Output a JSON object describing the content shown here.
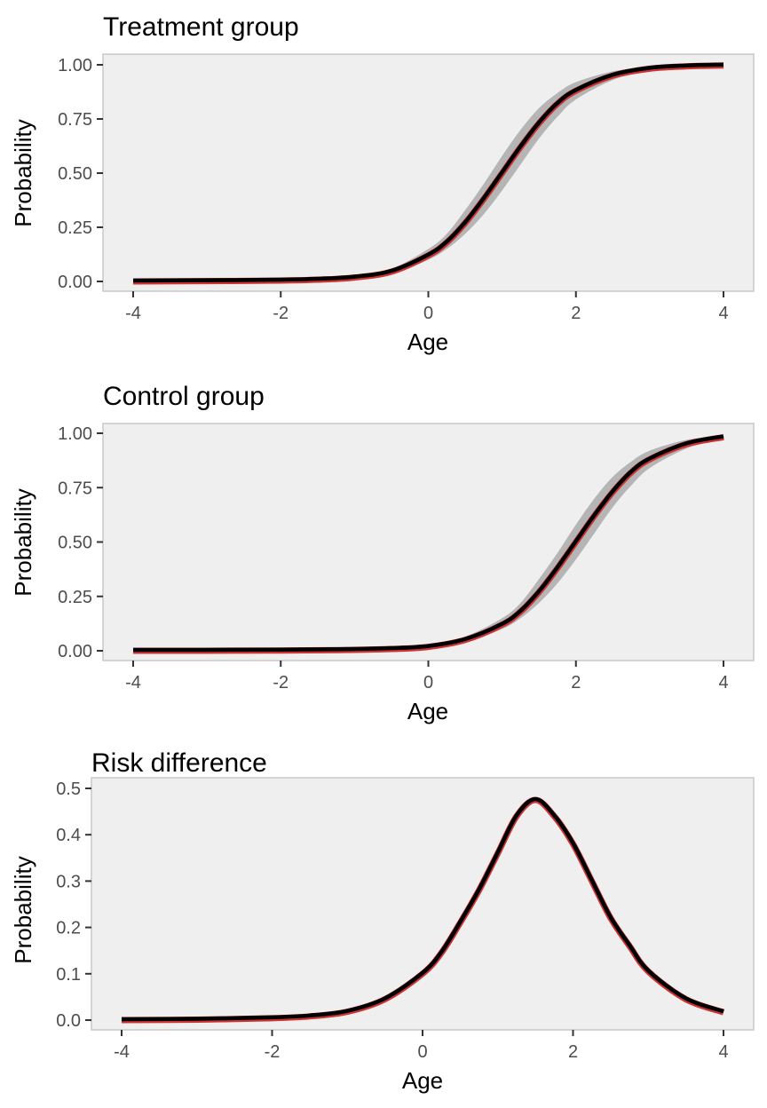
{
  "chart_data": [
    {
      "type": "line",
      "title": "Treatment group",
      "xlabel": "Age",
      "ylabel": "Probability",
      "xlim": [
        -4,
        4
      ],
      "ylim": [
        0,
        1
      ],
      "xticks": [
        -4,
        -2,
        0,
        2,
        4
      ],
      "xtick_labels": [
        "-4",
        "-2",
        "0",
        "2",
        "4"
      ],
      "yticks": [
        0,
        0.25,
        0.5,
        0.75,
        1
      ],
      "ytick_labels": [
        "0.00",
        "0.25",
        "0.50",
        "0.75",
        "1.00"
      ],
      "grid": false,
      "legend": "none",
      "series": [
        {
          "values": [
            {
              "x": -4.0,
              "y": 0.0
            },
            {
              "x": -3.0,
              "y": 0.0015
            },
            {
              "x": -2.0,
              "y": 0.004
            },
            {
              "x": -1.5,
              "y": 0.008
            },
            {
              "x": -1.0,
              "y": 0.018
            },
            {
              "x": -0.5,
              "y": 0.045
            },
            {
              "x": 0.0,
              "y": 0.12
            },
            {
              "x": 0.25,
              "y": 0.18
            },
            {
              "x": 0.5,
              "y": 0.27
            },
            {
              "x": 0.75,
              "y": 0.38
            },
            {
              "x": 1.0,
              "y": 0.5
            },
            {
              "x": 1.25,
              "y": 0.62
            },
            {
              "x": 1.5,
              "y": 0.73
            },
            {
              "x": 1.75,
              "y": 0.82
            },
            {
              "x": 2.0,
              "y": 0.88
            },
            {
              "x": 2.5,
              "y": 0.95
            },
            {
              "x": 3.0,
              "y": 0.982
            },
            {
              "x": 3.5,
              "y": 0.993
            },
            {
              "x": 4.0,
              "y": 0.997
            }
          ]
        }
      ],
      "band": [
        {
          "x": -4.0,
          "low": 0.0,
          "high": 0.0
        },
        {
          "x": -3.0,
          "low": 0.001,
          "high": 0.002
        },
        {
          "x": -2.0,
          "low": 0.003,
          "high": 0.005
        },
        {
          "x": -1.5,
          "low": 0.006,
          "high": 0.011
        },
        {
          "x": -1.0,
          "low": 0.013,
          "high": 0.025
        },
        {
          "x": -0.5,
          "low": 0.035,
          "high": 0.058
        },
        {
          "x": 0.0,
          "low": 0.1,
          "high": 0.15
        },
        {
          "x": 0.25,
          "low": 0.15,
          "high": 0.22
        },
        {
          "x": 0.5,
          "low": 0.22,
          "high": 0.33
        },
        {
          "x": 0.75,
          "low": 0.31,
          "high": 0.45
        },
        {
          "x": 1.0,
          "low": 0.42,
          "high": 0.58
        },
        {
          "x": 1.25,
          "low": 0.54,
          "high": 0.7
        },
        {
          "x": 1.5,
          "low": 0.66,
          "high": 0.8
        },
        {
          "x": 1.75,
          "low": 0.76,
          "high": 0.87
        },
        {
          "x": 2.0,
          "low": 0.84,
          "high": 0.92
        },
        {
          "x": 2.5,
          "low": 0.93,
          "high": 0.97
        },
        {
          "x": 3.0,
          "low": 0.975,
          "high": 0.99
        },
        {
          "x": 3.5,
          "low": 0.99,
          "high": 0.996
        },
        {
          "x": 4.0,
          "low": 0.996,
          "high": 0.999
        }
      ],
      "colors": {
        "line": "#000000",
        "band": "#b5b5b5",
        "reference": "#cc3333"
      }
    },
    {
      "type": "line",
      "title": "Control group",
      "xlabel": "Age",
      "ylabel": "Probability",
      "xlim": [
        -4,
        4
      ],
      "ylim": [
        0,
        1
      ],
      "xticks": [
        -4,
        -2,
        0,
        2,
        4
      ],
      "xtick_labels": [
        "-4",
        "-2",
        "0",
        "2",
        "4"
      ],
      "yticks": [
        0,
        0.25,
        0.5,
        0.75,
        1
      ],
      "ytick_labels": [
        "0.00",
        "0.25",
        "0.50",
        "0.75",
        "1.00"
      ],
      "grid": false,
      "legend": "none",
      "series": [
        {
          "values": [
            {
              "x": -4.0,
              "y": 0.0
            },
            {
              "x": -3.0,
              "y": 0.0
            },
            {
              "x": -2.0,
              "y": 0.001
            },
            {
              "x": -1.0,
              "y": 0.004
            },
            {
              "x": -0.5,
              "y": 0.008
            },
            {
              "x": 0.0,
              "y": 0.018
            },
            {
              "x": 0.5,
              "y": 0.05
            },
            {
              "x": 1.0,
              "y": 0.12
            },
            {
              "x": 1.25,
              "y": 0.18
            },
            {
              "x": 1.5,
              "y": 0.27
            },
            {
              "x": 1.75,
              "y": 0.38
            },
            {
              "x": 2.0,
              "y": 0.5
            },
            {
              "x": 2.25,
              "y": 0.62
            },
            {
              "x": 2.5,
              "y": 0.73
            },
            {
              "x": 2.75,
              "y": 0.82
            },
            {
              "x": 3.0,
              "y": 0.88
            },
            {
              "x": 3.5,
              "y": 0.95
            },
            {
              "x": 4.0,
              "y": 0.982
            }
          ]
        }
      ],
      "band": [
        {
          "x": -4.0,
          "low": 0.0,
          "high": 0.0
        },
        {
          "x": -3.0,
          "low": 0.0,
          "high": 0.001
        },
        {
          "x": -2.0,
          "low": 0.0,
          "high": 0.002
        },
        {
          "x": -1.0,
          "low": 0.003,
          "high": 0.006
        },
        {
          "x": -0.5,
          "low": 0.006,
          "high": 0.011
        },
        {
          "x": 0.0,
          "low": 0.013,
          "high": 0.025
        },
        {
          "x": 0.5,
          "low": 0.04,
          "high": 0.065
        },
        {
          "x": 1.0,
          "low": 0.1,
          "high": 0.15
        },
        {
          "x": 1.25,
          "low": 0.15,
          "high": 0.22
        },
        {
          "x": 1.5,
          "low": 0.22,
          "high": 0.33
        },
        {
          "x": 1.75,
          "low": 0.31,
          "high": 0.45
        },
        {
          "x": 2.0,
          "low": 0.42,
          "high": 0.58
        },
        {
          "x": 2.25,
          "low": 0.54,
          "high": 0.7
        },
        {
          "x": 2.5,
          "low": 0.66,
          "high": 0.8
        },
        {
          "x": 2.75,
          "low": 0.76,
          "high": 0.87
        },
        {
          "x": 3.0,
          "low": 0.84,
          "high": 0.92
        },
        {
          "x": 3.5,
          "low": 0.93,
          "high": 0.97
        },
        {
          "x": 4.0,
          "low": 0.975,
          "high": 0.988
        }
      ],
      "colors": {
        "line": "#000000",
        "band": "#b5b5b5",
        "reference": "#cc3333"
      }
    },
    {
      "type": "line",
      "title": "Risk difference",
      "xlabel": "Age",
      "ylabel": "Probability",
      "xlim": [
        -4,
        4
      ],
      "ylim": [
        0,
        0.5
      ],
      "xticks": [
        -4,
        -2,
        0,
        2,
        4
      ],
      "xtick_labels": [
        "-4",
        "-2",
        "0",
        "2",
        "4"
      ],
      "yticks": [
        0,
        0.1,
        0.2,
        0.3,
        0.4,
        0.5
      ],
      "ytick_labels": [
        "0.0",
        "0.1",
        "0.2",
        "0.3",
        "0.4",
        "0.5"
      ],
      "grid": false,
      "legend": "none",
      "series": [
        {
          "values": [
            {
              "x": -4.0,
              "y": 0.0
            },
            {
              "x": -3.0,
              "y": 0.001
            },
            {
              "x": -2.0,
              "y": 0.004
            },
            {
              "x": -1.5,
              "y": 0.008
            },
            {
              "x": -1.0,
              "y": 0.018
            },
            {
              "x": -0.5,
              "y": 0.045
            },
            {
              "x": 0.0,
              "y": 0.1
            },
            {
              "x": 0.25,
              "y": 0.145
            },
            {
              "x": 0.5,
              "y": 0.21
            },
            {
              "x": 0.75,
              "y": 0.28
            },
            {
              "x": 1.0,
              "y": 0.36
            },
            {
              "x": 1.25,
              "y": 0.44
            },
            {
              "x": 1.5,
              "y": 0.475
            },
            {
              "x": 1.75,
              "y": 0.44
            },
            {
              "x": 2.0,
              "y": 0.38
            },
            {
              "x": 2.25,
              "y": 0.3
            },
            {
              "x": 2.5,
              "y": 0.22
            },
            {
              "x": 2.75,
              "y": 0.16
            },
            {
              "x": 3.0,
              "y": 0.105
            },
            {
              "x": 3.5,
              "y": 0.045
            },
            {
              "x": 4.0,
              "y": 0.017
            }
          ]
        }
      ],
      "colors": {
        "line": "#000000",
        "reference": "#cc3333"
      }
    }
  ]
}
